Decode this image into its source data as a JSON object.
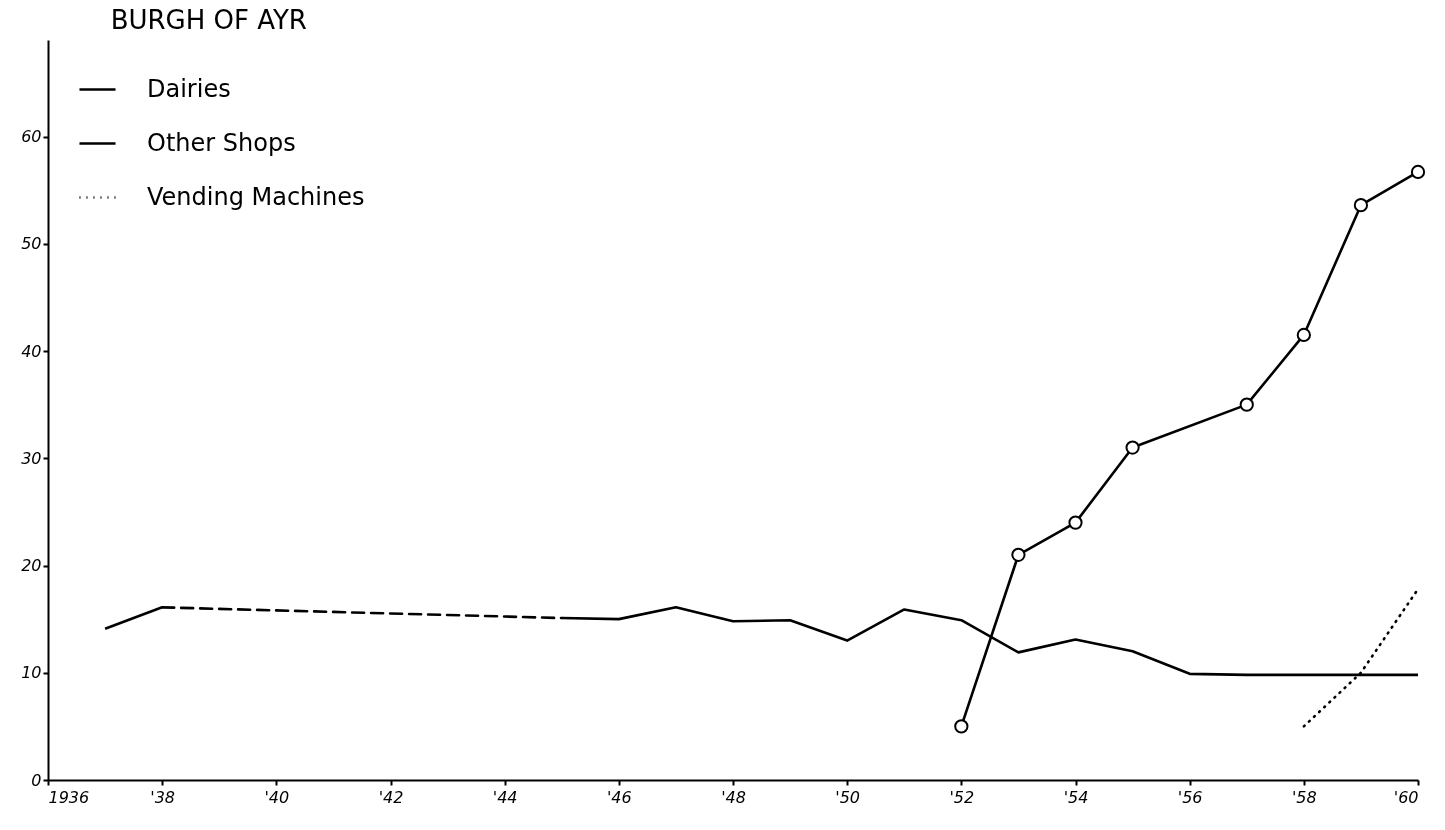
{
  "chart_data": {
    "type": "line",
    "title": "BURGH OF AYR",
    "xlim": [
      1936,
      1960
    ],
    "xticks": [
      {
        "value": 1936,
        "label": "1936"
      },
      {
        "value": 1938,
        "label": "'38"
      },
      {
        "value": 1940,
        "label": "'40"
      },
      {
        "value": 1942,
        "label": "'42"
      },
      {
        "value": 1944,
        "label": "'44"
      },
      {
        "value": 1946,
        "label": "'46"
      },
      {
        "value": 1948,
        "label": "'48"
      },
      {
        "value": 1950,
        "label": "'50"
      },
      {
        "value": 1952,
        "label": "'52"
      },
      {
        "value": 1954,
        "label": "'54"
      },
      {
        "value": 1956,
        "label": "'56"
      },
      {
        "value": 1958,
        "label": "'58"
      },
      {
        "value": 1960,
        "label": "'60"
      }
    ],
    "ylim": [
      0,
      69
    ],
    "yticks": [
      0,
      10,
      20,
      30,
      40,
      50,
      60
    ],
    "grid": false,
    "legend": "top left",
    "series": [
      {
        "name": "Dairies",
        "color": "#000000",
        "line_style": "solid",
        "x": [
          1945,
          1946,
          1947,
          1948,
          1949,
          1950,
          1951,
          1952,
          1953,
          1954,
          1955,
          1956,
          1957,
          1958,
          1959,
          1960
        ],
        "values": [
          15.1,
          15.0,
          16.1,
          14.8,
          14.9,
          13.0,
          15.9,
          14.9,
          11.9,
          13.1,
          12.0,
          9.9,
          9.8,
          9.8,
          9.8,
          9.8
        ]
      },
      {
        "color": "#000000",
        "line_style": "solid",
        "x": [
          1937,
          1938
        ],
        "values": [
          14.1,
          16.1
        ]
      },
      {
        "color": "#000000",
        "line_style": "dashed",
        "x": [
          1938,
          1945
        ],
        "values": [
          16.1,
          15.1
        ]
      },
      {
        "name": "Other Shops",
        "color": "#000000",
        "line_style": "solid",
        "marker": "circle",
        "x": [
          1952,
          1953,
          1954,
          1955,
          1957,
          1958,
          1959,
          1960
        ],
        "values": [
          5,
          21,
          24,
          31,
          35,
          41.5,
          53.6,
          56.7
        ]
      },
      {
        "name": "Vending Machines",
        "color": "#000000",
        "line_style": "dotted",
        "x": [
          1958,
          1959,
          1960
        ],
        "values": [
          5,
          10,
          17.8
        ]
      }
    ]
  }
}
